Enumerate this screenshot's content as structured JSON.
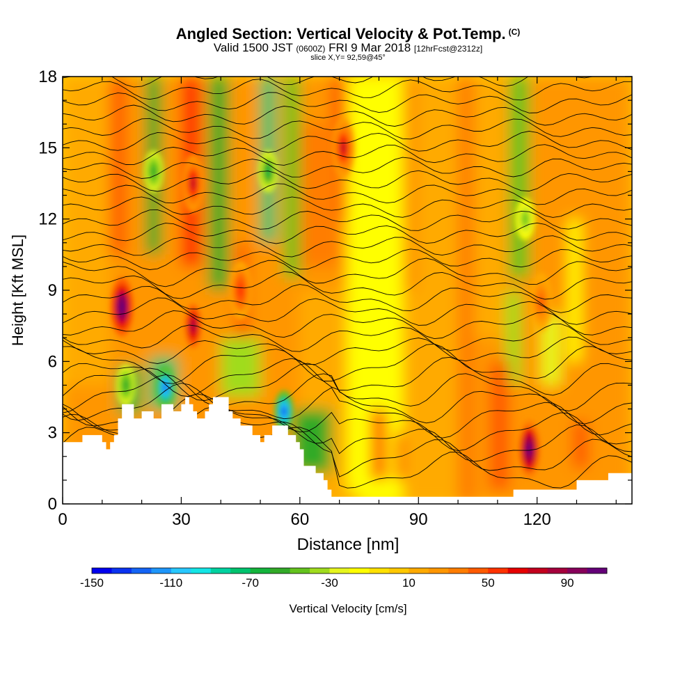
{
  "header": {
    "title_main": "Angled Section: Vertical Velocity & Pot.Temp.",
    "title_mark": "(C)",
    "valid_a": "Valid 1500 JST",
    "valid_b": "(0600Z)",
    "valid_c": "FRI 9 Mar 2018",
    "valid_d": "[12hrFcst@2312z]",
    "slice": "slice X,Y= 92,59@45°"
  },
  "chart_data": {
    "type": "heatmap",
    "xlabel": "Distance [nm]",
    "ylabel": "Height [Kft MSL]",
    "xlim": [
      0,
      144
    ],
    "ylim": [
      0,
      18
    ],
    "x_ticks": [
      0,
      30,
      60,
      90,
      120
    ],
    "y_ticks": [
      0,
      3,
      6,
      9,
      12,
      15,
      18
    ],
    "colorbar": {
      "label": "Vertical Velocity [cm/s]",
      "min": -150,
      "max": 110,
      "step": 10,
      "tick_labels": [
        -150,
        -110,
        -70,
        -30,
        10,
        50,
        90
      ],
      "colors": [
        "#0000ee",
        "#0a32f0",
        "#1464f5",
        "#1e96fa",
        "#28c8ff",
        "#14e6e6",
        "#00d2a0",
        "#00c36e",
        "#14b43c",
        "#32aa28",
        "#64c31e",
        "#a0dc1e",
        "#e6f51e",
        "#ffff00",
        "#ffe100",
        "#ffc800",
        "#ffaa00",
        "#ff9600",
        "#ff7d00",
        "#ff5a00",
        "#ff3200",
        "#e60000",
        "#c3001e",
        "#a5003c",
        "#87005a",
        "#640078"
      ]
    },
    "terrain_kft": {
      "x": [
        0,
        4,
        5,
        9,
        10,
        11,
        12,
        13,
        14,
        15,
        16,
        18,
        19,
        20,
        22,
        23,
        24,
        25,
        27,
        28,
        30,
        31,
        32,
        33,
        34,
        35,
        36,
        37,
        38,
        39,
        40,
        42,
        43,
        45,
        46,
        47,
        48,
        49,
        50,
        51,
        52,
        53,
        54,
        56,
        57,
        59,
        60,
        61,
        63,
        64,
        66,
        67,
        68,
        70,
        72,
        75,
        80,
        90,
        100,
        110,
        113,
        114,
        118,
        119,
        120,
        122,
        125,
        130,
        135,
        138,
        144
      ],
      "h": [
        2.6,
        2.6,
        2.9,
        2.9,
        2.6,
        2.3,
        2.6,
        2.9,
        3.6,
        4.2,
        4.2,
        3.6,
        3.6,
        3.9,
        3.9,
        3.6,
        3.6,
        4.2,
        4.2,
        3.9,
        4.2,
        4.5,
        4.2,
        3.9,
        3.6,
        3.6,
        3.9,
        4.2,
        4.5,
        4.5,
        4.5,
        3.9,
        3.6,
        3.3,
        3.3,
        3.3,
        2.9,
        2.9,
        2.6,
        2.9,
        2.9,
        3.3,
        3.3,
        3.3,
        2.9,
        2.6,
        2.3,
        1.6,
        1.6,
        1.3,
        1.0,
        0.6,
        0.3,
        0.3,
        0.3,
        0.3,
        0.3,
        0.3,
        0.3,
        0.3,
        0.3,
        0.6,
        0.6,
        0.6,
        0.6,
        0.6,
        0.6,
        1.0,
        1.0,
        1.3,
        1.3
      ]
    },
    "updraft_cores": [
      {
        "x": 15,
        "y": 8.3,
        "w": 120
      },
      {
        "x": 33,
        "y": 13.5,
        "w": 70
      },
      {
        "x": 33,
        "y": 7.5,
        "w": 80
      },
      {
        "x": 45,
        "y": 9.0,
        "w": 55
      },
      {
        "x": 71,
        "y": 15.0,
        "w": 70
      },
      {
        "x": 118,
        "y": 2.3,
        "w": 110
      },
      {
        "x": 121,
        "y": 8.5,
        "w": 45
      }
    ],
    "downdraft_cores": [
      {
        "x": 26,
        "y": 4.9,
        "w": -130
      },
      {
        "x": 56,
        "y": 3.9,
        "w": -140
      },
      {
        "x": 23,
        "y": 14.0,
        "w": -60
      },
      {
        "x": 52,
        "y": 14.0,
        "w": -70
      },
      {
        "x": 117,
        "y": 12.0,
        "w": -50
      },
      {
        "x": 16,
        "y": 5.0,
        "w": -60
      }
    ]
  }
}
